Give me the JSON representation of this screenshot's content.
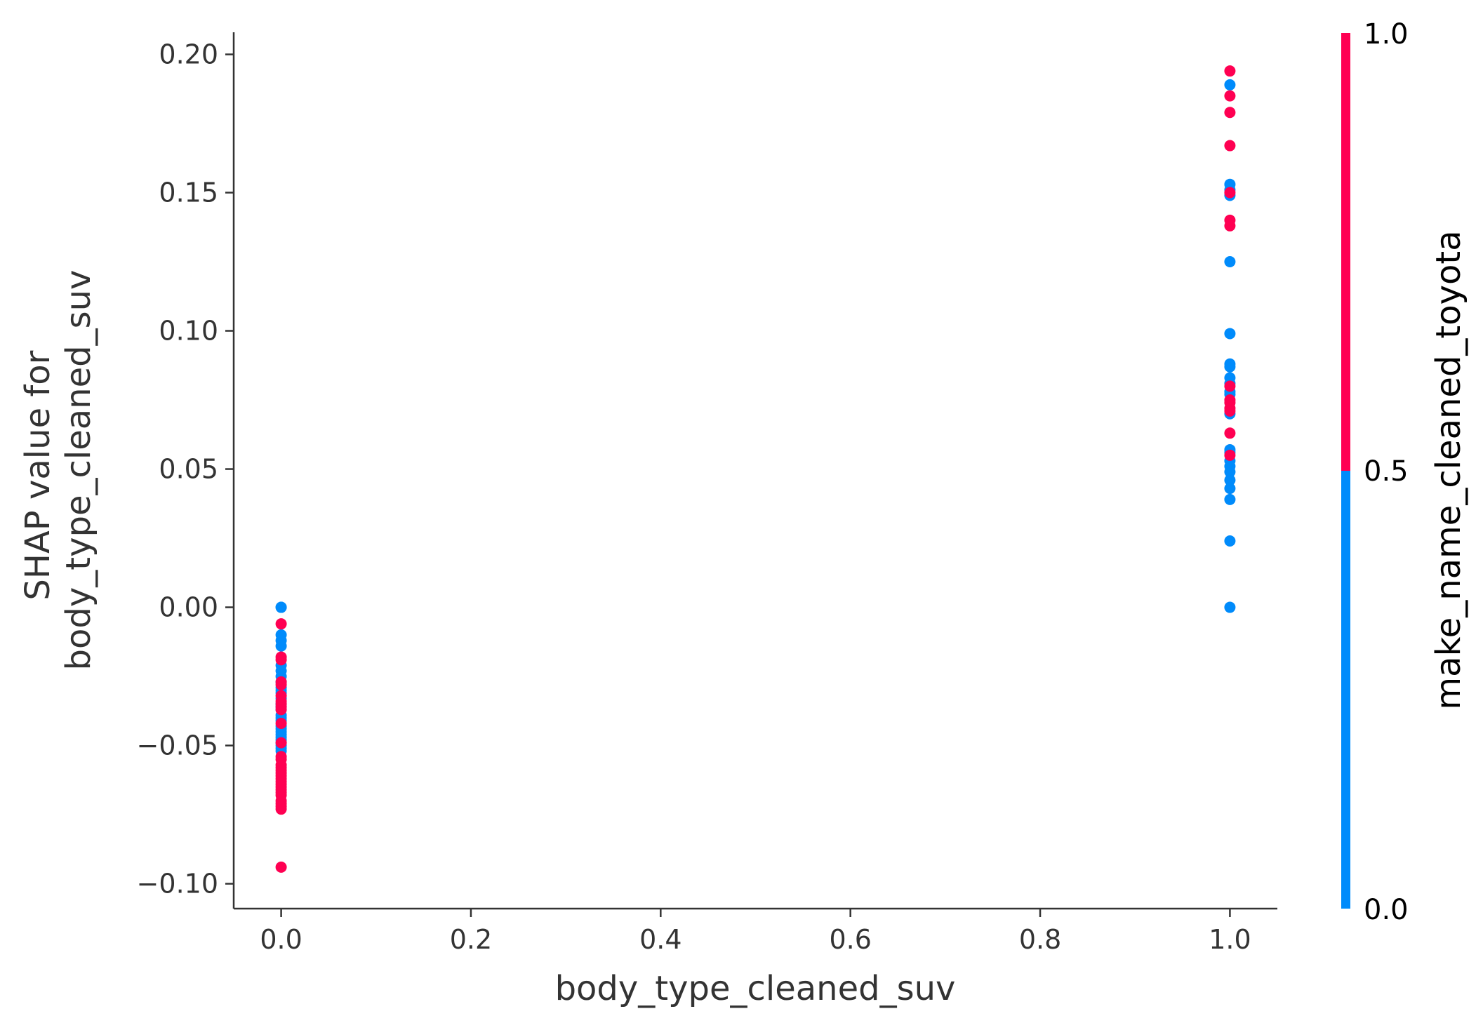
{
  "chart_data": {
    "type": "scatter",
    "xlabel": "body_type_cleaned_suv",
    "ylabel_lines": [
      "SHAP value for",
      "body_type_cleaned_suv"
    ],
    "xlim": [
      -0.05,
      1.05
    ],
    "ylim": [
      -0.109,
      0.208
    ],
    "x_ticks": [
      "0.0",
      "0.2",
      "0.4",
      "0.6",
      "0.8",
      "1.0"
    ],
    "y_ticks": [
      "−0.10",
      "−0.05",
      "0.00",
      "0.05",
      "0.10",
      "0.15",
      "0.20"
    ],
    "grid": false,
    "colorbar": {
      "label": "make_name_cleaned_toyota",
      "ticks": [
        "0.0",
        "0.5",
        "1.0"
      ],
      "low_color": "#008bfb",
      "high_color": "#ff0052"
    },
    "series": [
      {
        "color_value": 0,
        "color": "#008bfb",
        "x": [
          0,
          0,
          0,
          0,
          0,
          0,
          0,
          0,
          0,
          0,
          0,
          0,
          0,
          0,
          0,
          0,
          0,
          0,
          0,
          0,
          0,
          0,
          0,
          0,
          0,
          0,
          0,
          0,
          0,
          1,
          1,
          1,
          1,
          1,
          1,
          1,
          1,
          1,
          1,
          1,
          1,
          1,
          1,
          1,
          1,
          1,
          1,
          1,
          1,
          1,
          1,
          1
        ],
        "y": [
          0.0,
          0.0,
          -0.01,
          -0.012,
          -0.014,
          -0.021,
          -0.023,
          -0.025,
          -0.027,
          -0.029,
          -0.03,
          -0.031,
          -0.033,
          -0.035,
          -0.036,
          -0.037,
          -0.039,
          -0.04,
          -0.041,
          -0.043,
          -0.044,
          -0.045,
          -0.046,
          -0.047,
          -0.048,
          -0.049,
          -0.05,
          -0.051,
          -0.052,
          0.189,
          0.153,
          0.151,
          0.149,
          0.125,
          0.099,
          0.088,
          0.087,
          0.083,
          0.081,
          0.078,
          0.077,
          0.07,
          0.057,
          0.056,
          0.053,
          0.051,
          0.049,
          0.046,
          0.043,
          0.039,
          0.024,
          0.0
        ]
      },
      {
        "color_value": 1,
        "color": "#ff0052",
        "x": [
          0,
          0,
          0,
          0,
          0,
          0,
          0,
          0,
          0,
          0,
          0,
          0,
          0,
          0,
          0,
          0,
          0,
          0,
          0,
          0,
          0,
          0,
          0,
          0,
          0,
          0,
          0,
          0,
          0,
          0,
          0,
          1,
          1,
          1,
          1,
          1,
          1,
          1,
          1,
          1,
          1,
          1,
          1,
          1,
          1
        ],
        "y": [
          -0.006,
          -0.018,
          -0.019,
          -0.027,
          -0.028,
          -0.032,
          -0.034,
          -0.035,
          -0.036,
          -0.037,
          -0.042,
          -0.049,
          -0.054,
          -0.055,
          -0.057,
          -0.058,
          -0.059,
          -0.06,
          -0.061,
          -0.062,
          -0.063,
          -0.064,
          -0.065,
          -0.066,
          -0.067,
          -0.068,
          -0.07,
          -0.071,
          -0.072,
          -0.073,
          -0.094,
          0.194,
          0.185,
          0.179,
          0.167,
          0.15,
          0.14,
          0.138,
          0.08,
          0.075,
          0.074,
          0.072,
          0.071,
          0.063,
          0.055
        ]
      }
    ]
  }
}
